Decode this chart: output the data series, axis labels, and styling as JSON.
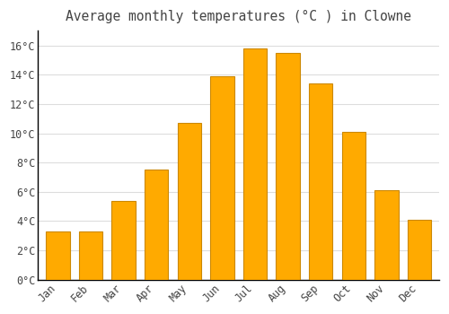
{
  "title": "Average monthly temperatures (°C ) in Clowne",
  "months": [
    "Jan",
    "Feb",
    "Mar",
    "Apr",
    "May",
    "Jun",
    "Jul",
    "Aug",
    "Sep",
    "Oct",
    "Nov",
    "Dec"
  ],
  "temperatures": [
    3.3,
    3.3,
    5.4,
    7.5,
    10.7,
    13.9,
    15.8,
    15.5,
    13.4,
    10.1,
    6.1,
    4.1
  ],
  "bar_color": "#FFAA00",
  "bar_edge_color": "#CC8800",
  "background_color": "#FFFFFF",
  "grid_color": "#DDDDDD",
  "text_color": "#444444",
  "ylim": [
    0,
    17
  ],
  "yticks": [
    0,
    2,
    4,
    6,
    8,
    10,
    12,
    14,
    16
  ],
  "title_fontsize": 10.5,
  "tick_fontsize": 8.5
}
